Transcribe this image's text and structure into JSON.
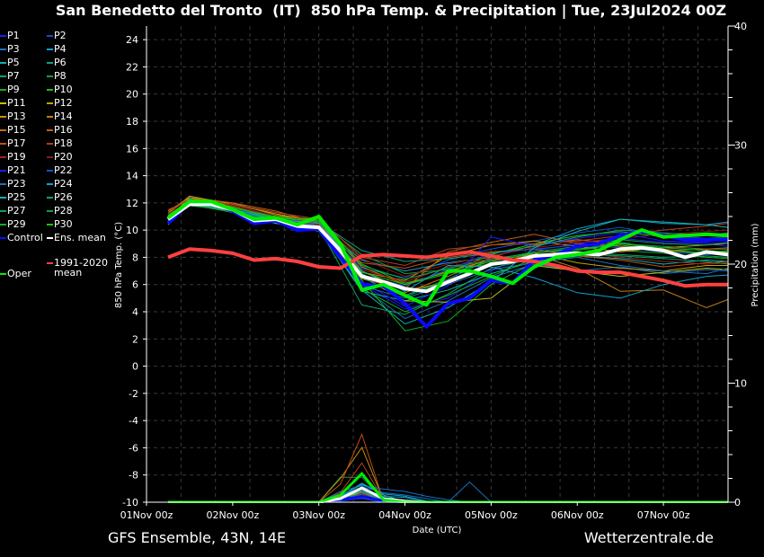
{
  "chart_data": {
    "type": "line",
    "title": "San Benedetto del Tronto  (IT)  850 hPa Temp. & Precipitation | Tue, 23Jul2024 00Z",
    "xlabel": "Date (UTC)",
    "ylabel": "850 hPa Temp. (°C)",
    "y2label": "Precipitation (mm)",
    "ylim": [
      -10,
      25
    ],
    "y2lim": [
      0,
      40
    ],
    "xlim_hours": [
      0,
      162
    ],
    "grid": true,
    "y_ticks": [
      "-10",
      "-8",
      "-6",
      "-4",
      "-2",
      "0",
      "2",
      "4",
      "6",
      "8",
      "10",
      "12",
      "14",
      "16",
      "18",
      "20",
      "22",
      "24"
    ],
    "y2_ticks": [
      "0",
      "10",
      "20",
      "30",
      "40"
    ],
    "x_ticks": [
      {
        "hour": 0,
        "label": "01Nov 00z"
      },
      {
        "hour": 24,
        "label": "02Nov 00z"
      },
      {
        "hour": 48,
        "label": "03Nov 00z"
      },
      {
        "hour": 72,
        "label": "04Nov 00z"
      },
      {
        "hour": 96,
        "label": "05Nov 00z"
      },
      {
        "hour": 120,
        "label": "06Nov 00z"
      },
      {
        "hour": 144,
        "label": "07Nov 00z"
      }
    ],
    "hours_main": [
      6,
      12,
      18,
      24,
      30,
      36,
      42,
      48,
      54,
      60,
      66,
      72,
      78,
      84,
      90,
      96,
      102,
      108,
      114,
      120,
      126,
      132,
      138,
      144,
      150,
      156,
      162
    ],
    "hours_members": [
      6,
      12,
      24,
      36,
      48,
      60,
      72,
      84,
      96,
      108,
      120,
      132,
      144,
      156,
      162
    ],
    "hours_precip": [
      48,
      54,
      60,
      66,
      72,
      78,
      84,
      90,
      96,
      102
    ],
    "main_series": [
      {
        "name": "Control",
        "color": "#0a0aff",
        "temp": [
          10.5,
          12.0,
          12.0,
          11.4,
          10.5,
          10.7,
          10.0,
          10.1,
          8.0,
          6.0,
          5.9,
          4.6,
          2.9,
          4.6,
          5.0,
          6.3,
          6.1,
          7.8,
          8.2,
          8.8,
          9.0,
          9.6,
          9.9,
          9.6,
          9.3,
          9.3,
          9.3
        ],
        "precip": [
          0,
          0.2,
          0.5,
          0.1,
          0,
          0,
          0,
          0,
          0,
          0
        ]
      },
      {
        "name": "Ens. mean",
        "color": "#ffffff",
        "temp": [
          10.8,
          11.9,
          11.9,
          11.5,
          10.7,
          10.8,
          10.3,
          10.2,
          8.5,
          6.6,
          6.2,
          5.7,
          5.5,
          6.2,
          6.8,
          7.5,
          7.7,
          8.1,
          8.2,
          8.3,
          8.2,
          8.6,
          8.7,
          8.5,
          8.0,
          8.4,
          8.2
        ],
        "precip": [
          0,
          0.3,
          1.2,
          0.3,
          0.1,
          0,
          0,
          0,
          0,
          0
        ]
      },
      {
        "name": "1991-2020 mean",
        "color": "#ff4040",
        "temp": [
          8.0,
          8.6,
          8.5,
          8.3,
          7.8,
          7.9,
          7.7,
          7.3,
          7.2,
          8.1,
          8.2,
          8.1,
          8.0,
          8.2,
          8.4,
          8.1,
          7.8,
          7.7,
          7.4,
          7.0,
          6.9,
          6.9,
          6.6,
          6.3,
          5.9,
          6.0,
          6.0
        ]
      },
      {
        "name": "Oper",
        "color": "#00ee00",
        "temp": [
          10.9,
          12.1,
          12.1,
          11.5,
          10.8,
          10.9,
          10.4,
          11.0,
          9.0,
          5.6,
          6.0,
          5.2,
          4.5,
          7.0,
          7.0,
          6.6,
          6.1,
          7.3,
          8.0,
          8.2,
          8.5,
          9.3,
          10.0,
          9.5,
          9.6,
          9.7,
          9.6
        ],
        "precip": [
          0,
          0.6,
          2.4,
          0.2,
          0,
          0,
          0,
          0,
          0,
          0
        ]
      }
    ],
    "members": [
      {
        "name": "P1",
        "color": "#1a1aff",
        "temp": [
          10.6,
          12.0,
          11.6,
          10.6,
          10.0,
          6.0,
          4.2,
          5.0,
          7.0,
          8.5,
          9.0,
          9.4,
          9.1,
          9.0,
          8.8
        ],
        "precip": [
          0,
          0.1,
          0.4,
          0,
          0,
          0,
          0,
          0,
          0,
          0
        ]
      },
      {
        "name": "P2",
        "color": "#1050c8",
        "temp": [
          10.9,
          12.2,
          11.4,
          10.9,
          10.4,
          7.2,
          6.5,
          7.8,
          8.6,
          9.2,
          9.8,
          10.2,
          9.6,
          9.4,
          9.5
        ],
        "precip": [
          0,
          0.3,
          0.9,
          0.2,
          0,
          0,
          0,
          0,
          0,
          0
        ]
      },
      {
        "name": "P3",
        "color": "#1870c0",
        "temp": [
          10.5,
          11.9,
          11.5,
          10.7,
          9.9,
          5.8,
          3.5,
          4.8,
          6.5,
          7.5,
          7.0,
          7.3,
          6.8,
          7.1,
          7.0
        ],
        "precip": [
          0,
          0.4,
          1.3,
          0.8,
          0.6,
          0.3,
          0,
          1.7,
          0,
          0
        ]
      },
      {
        "name": "P4",
        "color": "#10a0d0",
        "temp": [
          10.8,
          12.3,
          11.6,
          10.9,
          10.3,
          7.8,
          7.0,
          7.6,
          8.0,
          8.9,
          10.1,
          10.8,
          10.5,
          10.4,
          10.6
        ],
        "precip": [
          0,
          0.2,
          1.0,
          0.5,
          0.4,
          0.1,
          0,
          0,
          0,
          0
        ]
      },
      {
        "name": "P5",
        "color": "#10b0b0",
        "temp": [
          10.4,
          12.1,
          11.3,
          10.5,
          10.1,
          5.5,
          4.8,
          5.6,
          6.8,
          7.7,
          8.1,
          7.9,
          7.5,
          7.8,
          7.7
        ],
        "precip": [
          0,
          0.5,
          1.6,
          0.6,
          0,
          0,
          0,
          0,
          0,
          0
        ]
      },
      {
        "name": "P6",
        "color": "#10a080",
        "temp": [
          11.0,
          12.0,
          11.7,
          10.8,
          10.5,
          6.8,
          5.2,
          6.4,
          7.9,
          8.3,
          8.7,
          9.1,
          8.6,
          8.3,
          8.1
        ],
        "precip": [
          0,
          0.2,
          0.7,
          0.1,
          0,
          0,
          0,
          0,
          0,
          0
        ]
      },
      {
        "name": "P7",
        "color": "#10a060",
        "temp": [
          10.7,
          11.8,
          11.4,
          10.6,
          10.2,
          4.5,
          3.8,
          5.3,
          7.2,
          7.9,
          8.4,
          8.2,
          8.0,
          8.1,
          8.0
        ],
        "precip": [
          0,
          0.3,
          1.1,
          0.3,
          0,
          0,
          0,
          0,
          0,
          0
        ]
      },
      {
        "name": "P8",
        "color": "#10a040",
        "temp": [
          10.9,
          12.1,
          11.5,
          10.9,
          10.6,
          8.2,
          6.8,
          7.1,
          7.5,
          8.0,
          8.6,
          9.0,
          8.8,
          8.6,
          8.7
        ],
        "precip": [
          0,
          2.1,
          2.1,
          0.2,
          0,
          0,
          0,
          0,
          0,
          0
        ]
      },
      {
        "name": "P9",
        "color": "#10b020",
        "temp": [
          10.6,
          12.0,
          11.6,
          10.7,
          10.3,
          6.3,
          2.6,
          3.3,
          6.0,
          7.6,
          8.2,
          8.5,
          8.3,
          8.0,
          7.9
        ],
        "precip": [
          0,
          0.2,
          0.6,
          0,
          0,
          0,
          0,
          0,
          0,
          0
        ]
      },
      {
        "name": "P10",
        "color": "#20c010",
        "temp": [
          11.1,
          12.1,
          11.6,
          11.0,
          10.8,
          7.5,
          6.1,
          6.9,
          8.2,
          9.0,
          9.6,
          9.9,
          9.5,
          9.2,
          9.3
        ],
        "precip": [
          0,
          0.1,
          0.5,
          0,
          0,
          0,
          0,
          0,
          0,
          0
        ]
      },
      {
        "name": "P11",
        "color": "#c0c010",
        "temp": [
          10.8,
          12.4,
          11.7,
          10.7,
          10.1,
          6.6,
          4.8,
          4.7,
          5.0,
          7.4,
          7.0,
          6.6,
          6.9,
          7.2,
          7.1
        ],
        "precip": [
          0,
          0.4,
          0.8,
          0.1,
          0,
          0,
          0,
          0,
          0,
          0
        ]
      },
      {
        "name": "P12",
        "color": "#c0a010",
        "temp": [
          11.2,
          12.5,
          11.9,
          11.2,
          10.6,
          7.0,
          5.6,
          6.1,
          7.4,
          8.3,
          7.6,
          7.2,
          7.0,
          7.4,
          7.4
        ],
        "precip": [
          0,
          0.2,
          0.4,
          0,
          0,
          0,
          0,
          0,
          0,
          0
        ]
      },
      {
        "name": "P13",
        "color": "#c09010",
        "temp": [
          10.7,
          12.2,
          11.8,
          11.0,
          10.4,
          6.9,
          6.3,
          8.1,
          8.9,
          9.2,
          8.8,
          8.4,
          8.7,
          8.9,
          9.0
        ],
        "precip": [
          0,
          2.0,
          4.6,
          0.2,
          0,
          0,
          0,
          0,
          0,
          0
        ]
      },
      {
        "name": "P14",
        "color": "#c08010",
        "temp": [
          11.4,
          12.4,
          12.0,
          11.1,
          10.7,
          7.3,
          6.0,
          7.0,
          7.8,
          8.2,
          7.2,
          5.5,
          5.6,
          4.3,
          4.9
        ],
        "precip": [
          0,
          0.3,
          0.6,
          0,
          0,
          0,
          0,
          0,
          0,
          0
        ]
      },
      {
        "name": "P15",
        "color": "#c07010",
        "temp": [
          11.0,
          12.1,
          11.7,
          10.9,
          10.3,
          6.1,
          5.4,
          6.6,
          8.0,
          8.9,
          9.3,
          9.0,
          8.6,
          8.2,
          8.4
        ],
        "precip": [
          0,
          0.5,
          0.9,
          0.1,
          0,
          0,
          0,
          0,
          0,
          0
        ]
      },
      {
        "name": "P16",
        "color": "#c06010",
        "temp": [
          11.3,
          12.3,
          12.0,
          11.4,
          10.5,
          6.4,
          5.7,
          8.4,
          9.1,
          9.7,
          9.0,
          8.8,
          8.5,
          8.6,
          8.6
        ],
        "precip": [
          0,
          0.2,
          0.5,
          0,
          0,
          0,
          0,
          0,
          0,
          0
        ]
      },
      {
        "name": "P17",
        "color": "#c05010",
        "temp": [
          10.9,
          12.0,
          11.6,
          10.8,
          10.2,
          7.6,
          7.2,
          8.0,
          8.4,
          8.6,
          8.1,
          7.8,
          7.3,
          7.6,
          7.7
        ],
        "precip": [
          0,
          1.5,
          5.7,
          0.1,
          0,
          0,
          0,
          0,
          0,
          0
        ]
      },
      {
        "name": "P18",
        "color": "#b04020",
        "temp": [
          11.5,
          12.2,
          11.9,
          11.3,
          10.8,
          8.0,
          7.4,
          8.6,
          8.9,
          9.0,
          9.2,
          9.6,
          10.0,
          10.3,
          10.5
        ],
        "precip": [
          0,
          0.8,
          3.3,
          0.2,
          0,
          0,
          0,
          0,
          0,
          0
        ]
      },
      {
        "name": "P19",
        "color": "#a02020",
        "temp": [
          11.2,
          12.1,
          11.8,
          11.0,
          10.4,
          7.1,
          6.2,
          7.3,
          7.9,
          8.1,
          8.4,
          8.0,
          7.7,
          7.5,
          7.6
        ],
        "precip": [
          0,
          0.3,
          0.7,
          0.1,
          0,
          0,
          0,
          0,
          0,
          0
        ]
      },
      {
        "name": "P20",
        "color": "#901818",
        "temp": [
          11.0,
          12.0,
          11.7,
          10.9,
          10.5,
          7.9,
          6.6,
          7.5,
          8.1,
          8.7,
          9.1,
          9.4,
          9.7,
          9.9,
          10.0
        ],
        "precip": [
          0,
          0.2,
          0.4,
          0,
          0,
          0,
          0,
          0,
          0,
          0
        ]
      },
      {
        "name": "P21",
        "color": "#1a1aff",
        "temp": [
          10.6,
          11.9,
          11.5,
          10.6,
          10.0,
          6.2,
          4.4,
          5.9,
          9.5,
          8.8,
          9.4,
          9.8,
          9.2,
          9.1,
          9.0
        ],
        "precip": [
          0,
          0.1,
          0.3,
          0,
          0,
          0,
          0,
          0,
          0,
          0
        ]
      },
      {
        "name": "P22",
        "color": "#1050c8",
        "temp": [
          10.8,
          12.1,
          11.6,
          10.8,
          10.3,
          6.7,
          5.9,
          7.1,
          8.3,
          8.6,
          8.9,
          8.7,
          8.4,
          8.2,
          8.3
        ],
        "precip": [
          0,
          0.2,
          0.6,
          0.1,
          0,
          0,
          0,
          0,
          0,
          0
        ]
      },
      {
        "name": "P23",
        "color": "#1870c0",
        "temp": [
          10.5,
          12.2,
          11.4,
          10.6,
          10.1,
          5.9,
          5.0,
          6.0,
          7.1,
          7.6,
          8.0,
          7.4,
          7.0,
          6.8,
          7.2
        ],
        "precip": [
          0,
          0.9,
          1.4,
          1.1,
          0.9,
          0.5,
          0.2,
          0,
          0,
          0
        ]
      },
      {
        "name": "P24",
        "color": "#10a0d0",
        "temp": [
          10.7,
          12.3,
          11.5,
          10.8,
          10.5,
          7.0,
          5.5,
          7.4,
          7.3,
          6.5,
          5.4,
          5.0,
          6.0,
          6.6,
          6.7
        ],
        "precip": [
          0,
          0.4,
          1.5,
          0.7,
          0.5,
          0.1,
          0,
          0,
          0,
          0
        ]
      },
      {
        "name": "P25",
        "color": "#10b0b0",
        "temp": [
          10.4,
          12.0,
          11.3,
          10.5,
          10.0,
          5.6,
          3.1,
          4.3,
          6.2,
          8.7,
          9.9,
          10.8,
          10.6,
          10.4,
          10.2
        ],
        "precip": [
          0,
          0.3,
          1.0,
          0.2,
          0,
          0,
          0,
          0,
          0,
          0
        ]
      },
      {
        "name": "P26",
        "color": "#10a080",
        "temp": [
          10.8,
          11.9,
          11.5,
          10.9,
          10.6,
          8.5,
          7.7,
          7.9,
          8.3,
          8.8,
          9.5,
          10.0,
          9.8,
          9.6,
          9.8
        ],
        "precip": [
          0,
          0.2,
          0.8,
          0.1,
          0,
          0,
          0,
          0,
          0,
          0
        ]
      },
      {
        "name": "P27",
        "color": "#10a060",
        "temp": [
          10.6,
          12.0,
          11.4,
          10.7,
          10.2,
          6.5,
          5.1,
          6.3,
          7.6,
          8.0,
          8.3,
          8.1,
          7.9,
          7.7,
          7.5
        ],
        "precip": [
          0,
          0.3,
          0.6,
          0,
          0,
          0,
          0,
          0,
          0,
          0
        ]
      },
      {
        "name": "P28",
        "color": "#10a040",
        "temp": [
          10.9,
          12.1,
          11.6,
          11.0,
          10.6,
          7.4,
          6.4,
          7.2,
          7.8,
          8.4,
          8.8,
          9.3,
          9.0,
          8.9,
          9.1
        ],
        "precip": [
          0,
          0.2,
          1.2,
          0.3,
          0,
          0,
          0,
          0,
          0,
          0
        ]
      },
      {
        "name": "P29",
        "color": "#10b020",
        "temp": [
          10.5,
          11.9,
          11.3,
          10.6,
          10.1,
          5.7,
          4.0,
          5.2,
          6.6,
          7.9,
          8.5,
          9.0,
          8.7,
          8.5,
          8.4
        ],
        "precip": [
          0,
          0.1,
          0.5,
          0,
          0,
          0,
          0,
          0,
          0,
          0
        ]
      },
      {
        "name": "P30",
        "color": "#20c010",
        "temp": [
          11.0,
          12.1,
          11.7,
          10.9,
          10.7,
          6.9,
          6.0,
          6.8,
          7.7,
          8.3,
          8.6,
          8.9,
          8.5,
          8.3,
          8.5
        ],
        "precip": [
          0,
          0.2,
          0.4,
          0,
          0,
          0,
          0,
          0,
          0,
          0
        ]
      }
    ]
  },
  "legend": {
    "climo_label_line1": "1991-2020",
    "climo_label_line2": "mean"
  },
  "footer": {
    "left": "GFS Ensemble, 43N, 14E",
    "right": "Wetterzentrale.de"
  }
}
